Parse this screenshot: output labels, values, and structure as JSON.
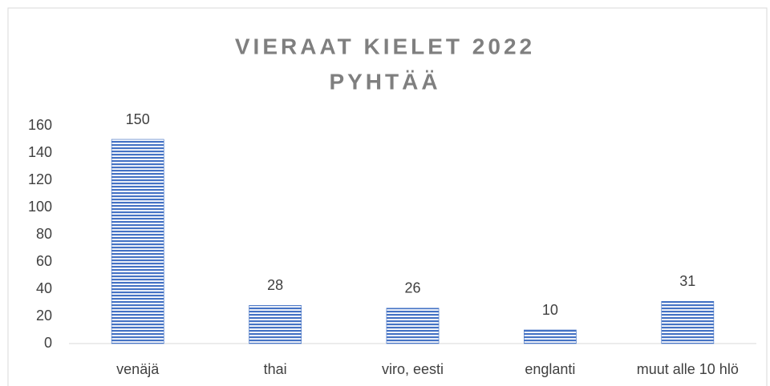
{
  "chart_data": {
    "type": "bar",
    "title": [
      "VIERAAT KIELET 2022",
      "PYHTÄÄ"
    ],
    "categories": [
      "venäjä",
      "thai",
      "viro, eesti",
      "englanti",
      "muut alle 10 hlö"
    ],
    "values": [
      150,
      28,
      26,
      10,
      31
    ],
    "color": "#4472c4",
    "ylim": [
      0,
      160
    ],
    "yticks": [
      0,
      20,
      40,
      60,
      80,
      100,
      120,
      140,
      160
    ],
    "grid": false,
    "data_labels": true
  }
}
